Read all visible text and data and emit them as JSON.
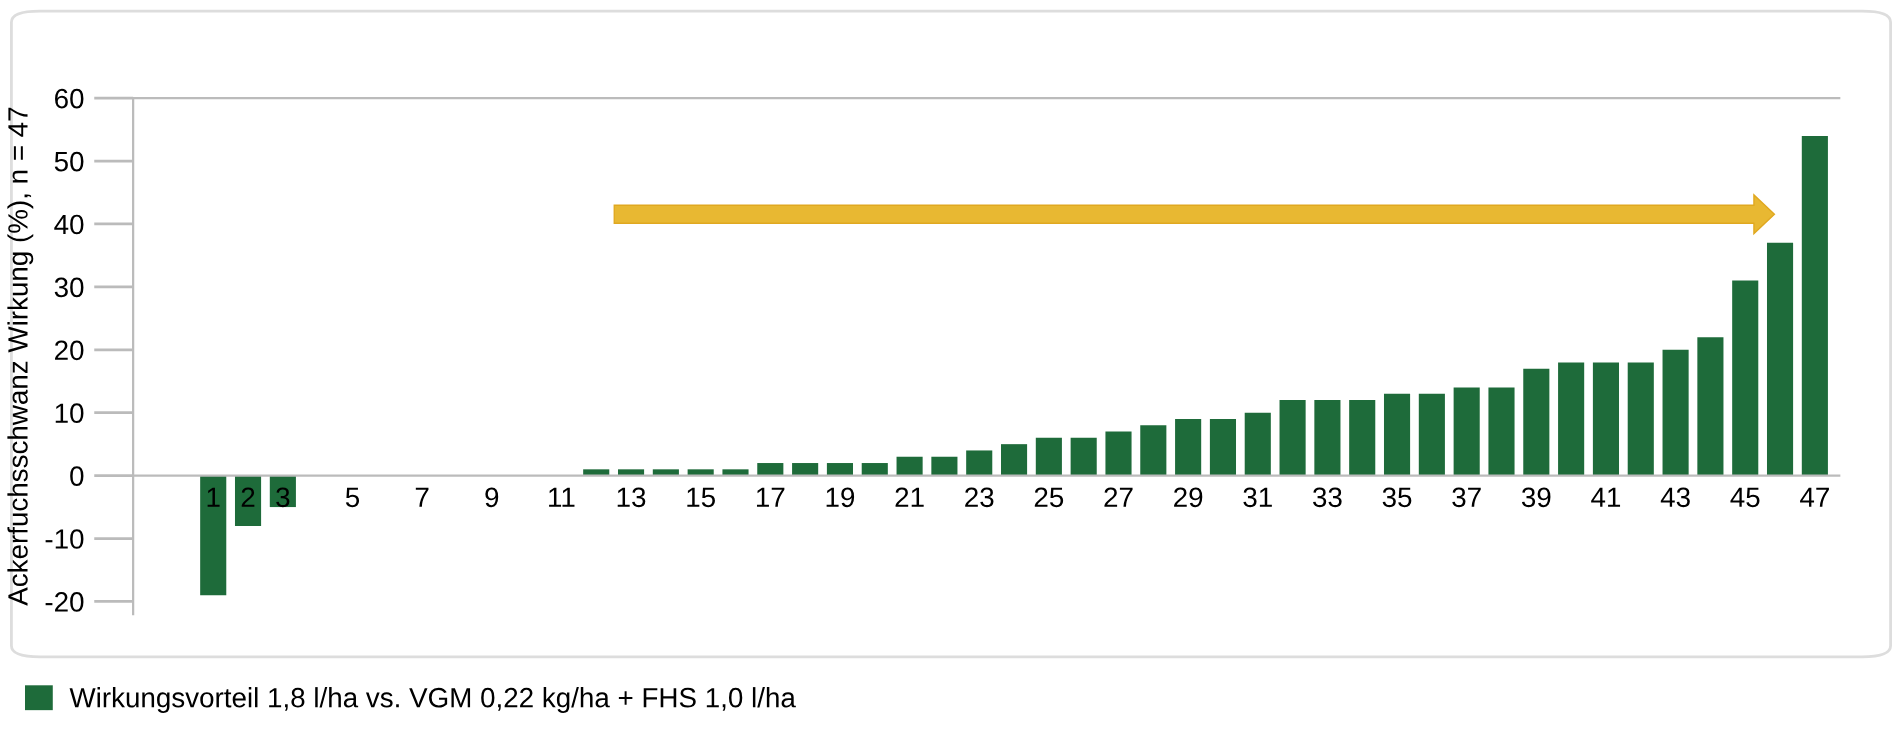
{
  "chart_data": {
    "type": "bar",
    "ylabel": "Ackerfuchsschwanz Wirkung (%), n = 47",
    "categories": [
      "1",
      "2",
      "3",
      null,
      "5",
      null,
      "7",
      null,
      "9",
      null,
      "11",
      null,
      "13",
      null,
      "15",
      null,
      "17",
      null,
      "19",
      null,
      "21",
      null,
      "23",
      null,
      "25",
      null,
      "27",
      null,
      "29",
      null,
      "31",
      null,
      "33",
      null,
      "35",
      null,
      "37",
      null,
      "39",
      null,
      "41",
      null,
      "43",
      null,
      "45",
      null,
      "47"
    ],
    "series": [
      {
        "name": "Wirkungsvorteil 1,8 l/ha vs. VGM 0,22 kg/ha + FHS 1,0 l/ha",
        "color": "#1e6b3a",
        "values": [
          -19,
          -8,
          -5,
          0,
          0,
          0,
          0,
          0,
          0,
          0,
          0,
          1,
          1,
          1,
          1,
          1,
          2,
          2,
          2,
          2,
          3,
          3,
          4,
          5,
          6,
          6,
          7,
          8,
          9,
          9,
          10,
          12,
          12,
          12,
          13,
          13,
          14,
          14,
          17,
          18,
          18,
          18,
          20,
          22,
          31,
          37,
          54
        ]
      }
    ],
    "ylim": [
      -22,
      60
    ],
    "yticks": [
      -20,
      -10,
      0,
      10,
      20,
      30,
      40,
      50,
      60
    ],
    "legend": "bottom left",
    "grid": false
  }
}
